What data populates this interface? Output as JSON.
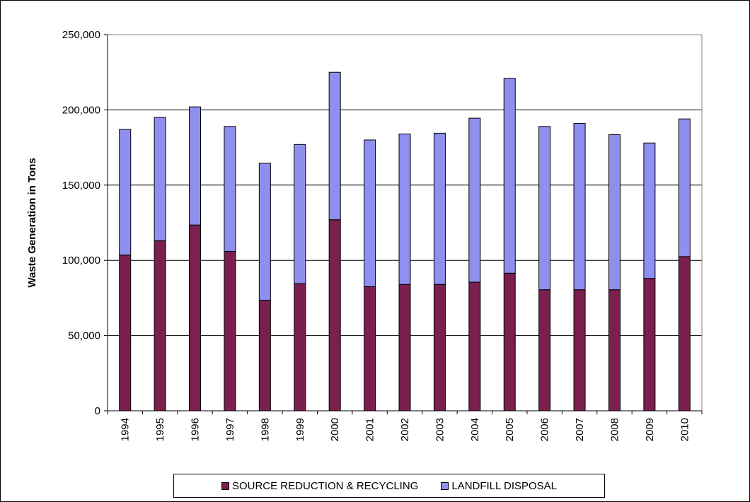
{
  "chart_data": {
    "type": "bar",
    "stacked": true,
    "title": "",
    "xlabel": "",
    "ylabel": "Waste Generation in Tons",
    "ylim": [
      0,
      250000
    ],
    "yticks": [
      0,
      50000,
      100000,
      150000,
      200000,
      250000
    ],
    "ytick_labels": [
      "0",
      "50,000",
      "100,000",
      "150,000",
      "200,000",
      "250,000"
    ],
    "grid": "horizontal major gridlines",
    "legend_position": "bottom",
    "categories": [
      "1994",
      "1995",
      "1996",
      "1997",
      "1998",
      "1999",
      "2000",
      "2001",
      "2002",
      "2003",
      "2004",
      "2005",
      "2006",
      "2007",
      "2008",
      "2009",
      "2010"
    ],
    "series": [
      {
        "name": "SOURCE REDUCTION & RECYCLING",
        "color": "#7b1f4f",
        "values": [
          103500,
          113000,
          123500,
          106000,
          73500,
          84500,
          127000,
          82500,
          84000,
          84000,
          85500,
          91500,
          80500,
          80500,
          80500,
          88000,
          102500
        ]
      },
      {
        "name": "LANDFILL DISPOSAL",
        "color": "#8f8ff0",
        "values": [
          83500,
          82000,
          78500,
          83000,
          91000,
          92500,
          98000,
          97500,
          100000,
          100500,
          109000,
          129500,
          108500,
          110500,
          103000,
          90000,
          91500
        ]
      }
    ]
  }
}
